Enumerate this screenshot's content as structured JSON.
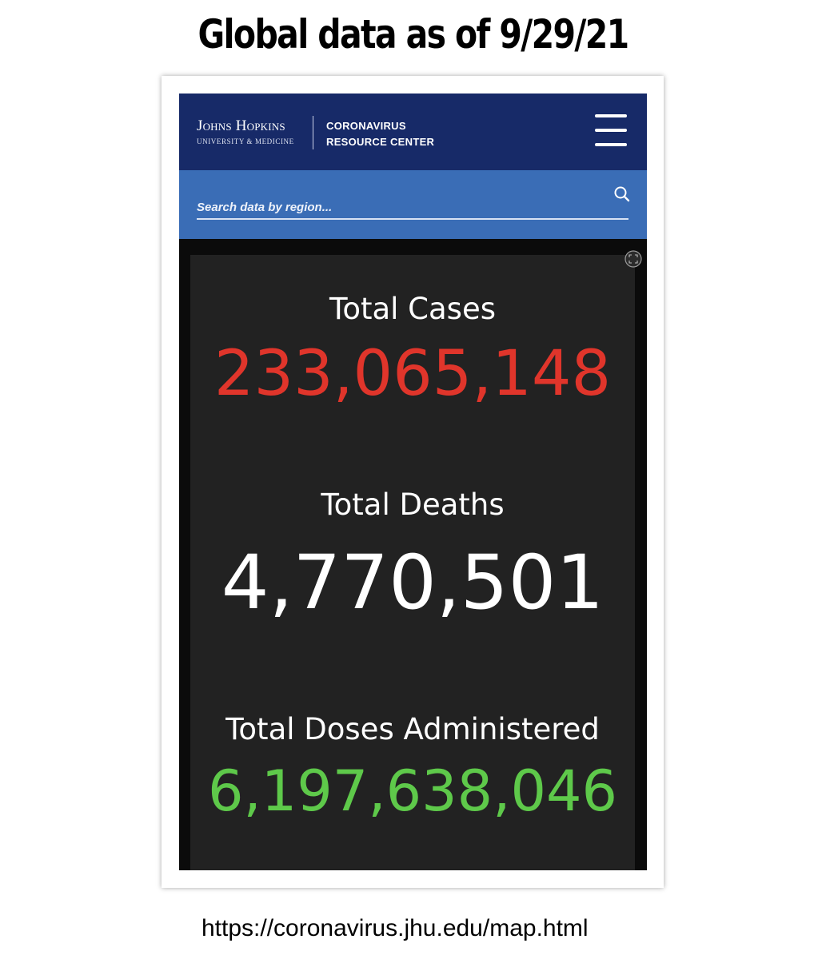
{
  "caption": {
    "title": "Global data as of 9/29/21",
    "url": "https://coronavirus.jhu.edu/map.html"
  },
  "header": {
    "logo_main": "Johns Hopkins",
    "logo_sub": "UNIVERSITY & MEDICINE",
    "center_line1": "CORONAVIRUS",
    "center_line2": "RESOURCE CENTER",
    "menu_icon": "hamburger-menu-icon"
  },
  "search": {
    "placeholder": "Search data by region...",
    "icon": "search-icon"
  },
  "dashboard": {
    "expand_icon": "expand-icon",
    "stats": [
      {
        "label": "Total Cases",
        "value": "233,065,148",
        "color": "#e0352b"
      },
      {
        "label": "Total Deaths",
        "value": "4,770,501",
        "color": "#ffffff"
      },
      {
        "label": "Total Doses Administered",
        "value": "6,197,638,046",
        "color": "#5ec94a"
      }
    ]
  },
  "colors": {
    "header_bg": "#172a68",
    "search_bg": "#3a6db6",
    "dashboard_bg": "#222222"
  }
}
